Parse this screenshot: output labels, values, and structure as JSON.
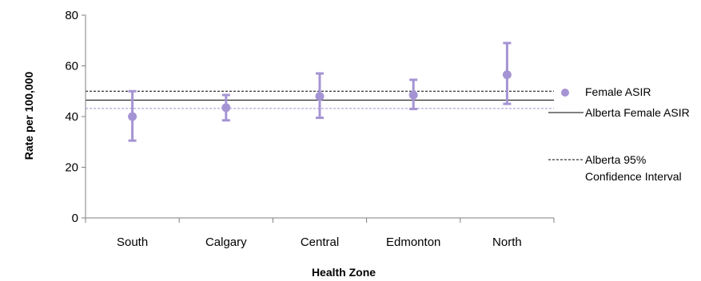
{
  "chart_data": {
    "type": "scatter",
    "xlabel": "Health Zone",
    "ylabel": "Rate per 100,000",
    "ylim": [
      0,
      80
    ],
    "yticks": [
      0,
      20,
      40,
      60,
      80
    ],
    "categories": [
      "South",
      "Calgary",
      "Central",
      "Edmonton",
      "North"
    ],
    "series": [
      {
        "name": "Female ASIR",
        "values": [
          40,
          43.5,
          48,
          48.5,
          56.5
        ],
        "ci_low": [
          30.5,
          38.5,
          39.5,
          43,
          45
        ],
        "ci_high": [
          50,
          48.5,
          57,
          54.5,
          69
        ],
        "color": "#a594d4"
      }
    ],
    "reference_lines": [
      {
        "name": "Alberta Female ASIR",
        "value": 46.5,
        "style": "solid",
        "color": "#000000"
      },
      {
        "name": "Alberta 95% Confidence Interval",
        "value": 50,
        "style": "dashed",
        "color": "#000000"
      },
      {
        "name": "Alberta 95% Confidence Interval",
        "value": 43.2,
        "style": "dashed",
        "color": "#a594d4"
      }
    ],
    "grid": false,
    "legend": {
      "placement": "right",
      "items": [
        {
          "label": "Female ASIR",
          "marker": "dot"
        },
        {
          "label": "Alberta Female ASIR",
          "marker": "solid-line"
        },
        {
          "label_lines": [
            "Alberta 95%",
            "Confidence Interval"
          ],
          "marker": "dashed-line"
        }
      ]
    }
  }
}
